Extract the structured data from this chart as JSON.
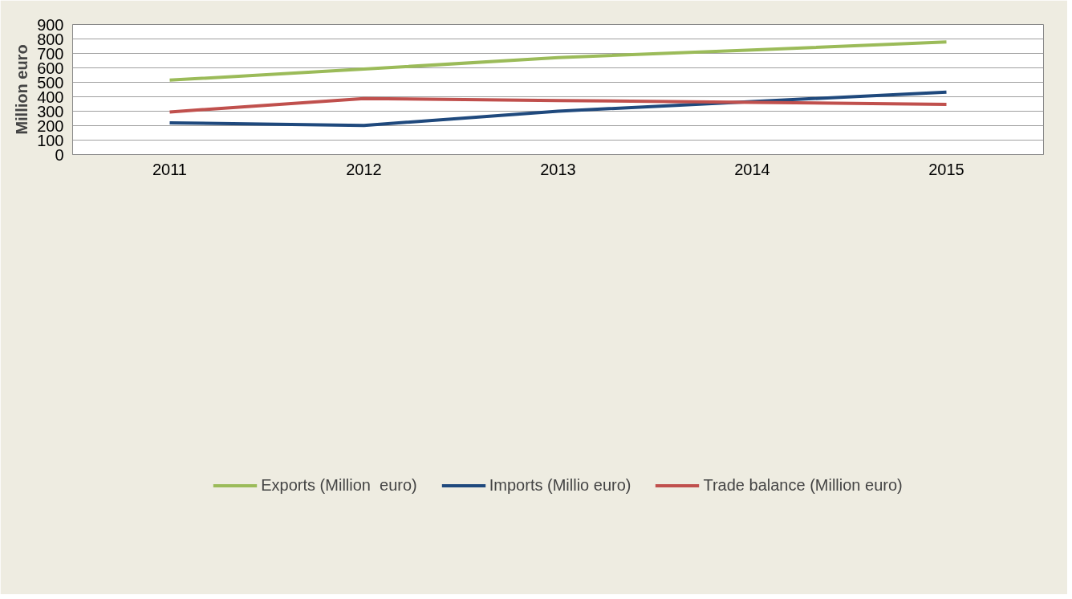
{
  "chart_data": {
    "type": "line",
    "ylabel": "Million euro",
    "categories": [
      "2011",
      "2012",
      "2013",
      "2014",
      "2015"
    ],
    "series": [
      {
        "name": "Exports (Million  euro)",
        "color": "#9bbb59",
        "values": [
          515,
          591,
          671,
          724,
          779
        ]
      },
      {
        "name": "Imports (Millio euro)",
        "color": "#1f497d",
        "values": [
          220,
          202,
          300,
          367,
          432
        ]
      },
      {
        "name": "Trade balance (Million euro)",
        "color": "#c0504d",
        "values": [
          295,
          388,
          374,
          361,
          347
        ]
      }
    ],
    "ylim": [
      0,
      900
    ],
    "yticks": [
      0,
      100,
      200,
      300,
      400,
      500,
      600,
      700,
      800,
      900
    ],
    "grid": "y",
    "legend": "bottom",
    "marker": "none",
    "line_style": "solid"
  }
}
